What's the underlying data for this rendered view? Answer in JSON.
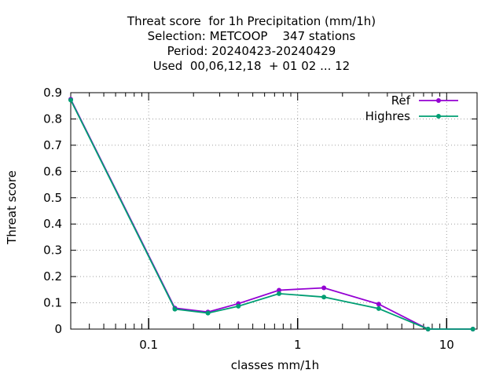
{
  "chart_data": {
    "type": "line",
    "title_lines": [
      "Threat score  for 1h Precipitation (mm/1h)",
      "Selection: METCOOP    347 stations",
      "Period: 20240423-20240429",
      "Used  00,06,12,18  + 01 02 ... 12"
    ],
    "xlabel": "classes mm/1h",
    "ylabel": "Threat score",
    "xscale": "log",
    "xlim": [
      0.03,
      16
    ],
    "ylim": [
      0,
      0.9
    ],
    "yticks": [
      "0",
      "0.1",
      "0.2",
      "0.3",
      "0.4",
      "0.5",
      "0.6",
      "0.7",
      "0.8",
      "0.9"
    ],
    "xticks": [
      "0.1",
      "1",
      "10"
    ],
    "grid": true,
    "legend_position": "top-right",
    "series": [
      {
        "name": "Ref",
        "color": "#9400d3",
        "x": [
          0.03,
          0.15,
          0.25,
          0.4,
          0.75,
          1.5,
          3.5,
          7.5,
          15
        ],
        "y": [
          0.875,
          0.08,
          0.065,
          0.097,
          0.148,
          0.157,
          0.095,
          0.0,
          0.0
        ]
      },
      {
        "name": "Highres",
        "color": "#009e73",
        "x": [
          0.03,
          0.15,
          0.25,
          0.4,
          0.75,
          1.5,
          3.5,
          7.5,
          15
        ],
        "y": [
          0.872,
          0.076,
          0.061,
          0.087,
          0.135,
          0.122,
          0.078,
          0.0,
          0.0
        ]
      }
    ]
  }
}
